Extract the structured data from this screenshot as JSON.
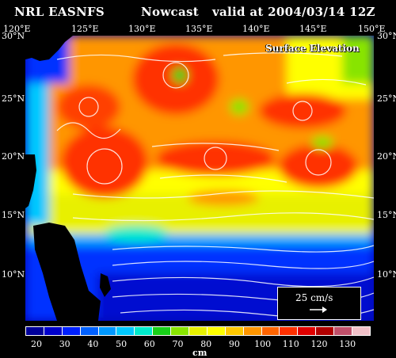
{
  "header": {
    "left": "NRL EASNFS",
    "middle": "Nowcast",
    "right": "valid at 2004/03/14 12Z"
  },
  "map": {
    "field_label": "Surface Elevation",
    "lon_labels": [
      "120°E",
      "125°E",
      "130°E",
      "135°E",
      "140°E",
      "145°E",
      "150°E"
    ],
    "lat_labels_left": [
      "30°N",
      "25°N",
      "20°N",
      "15°N",
      "10°N"
    ],
    "lat_labels_right": [
      "30°N",
      "25°N",
      "20°N",
      "15°N",
      "10°N"
    ],
    "colors": {
      "land": "#000000",
      "vectors": "#ffffff"
    }
  },
  "scale": {
    "label": "25 cm/s",
    "icon": "arrow-right-icon"
  },
  "colorbar": {
    "colors": [
      "#00009a",
      "#0000cc",
      "#0020ff",
      "#0060ff",
      "#0098ff",
      "#00c8ff",
      "#00eacc",
      "#18d018",
      "#88e400",
      "#e6f000",
      "#ffff00",
      "#ffc800",
      "#ff9600",
      "#ff6400",
      "#ff3000",
      "#e00000",
      "#b00000",
      "#c0506a",
      "#f0c0c8"
    ],
    "tick_labels": [
      "20",
      "30",
      "40",
      "50",
      "60",
      "70",
      "80",
      "90",
      "100",
      "110",
      "120",
      "130"
    ],
    "unit": "cm"
  }
}
